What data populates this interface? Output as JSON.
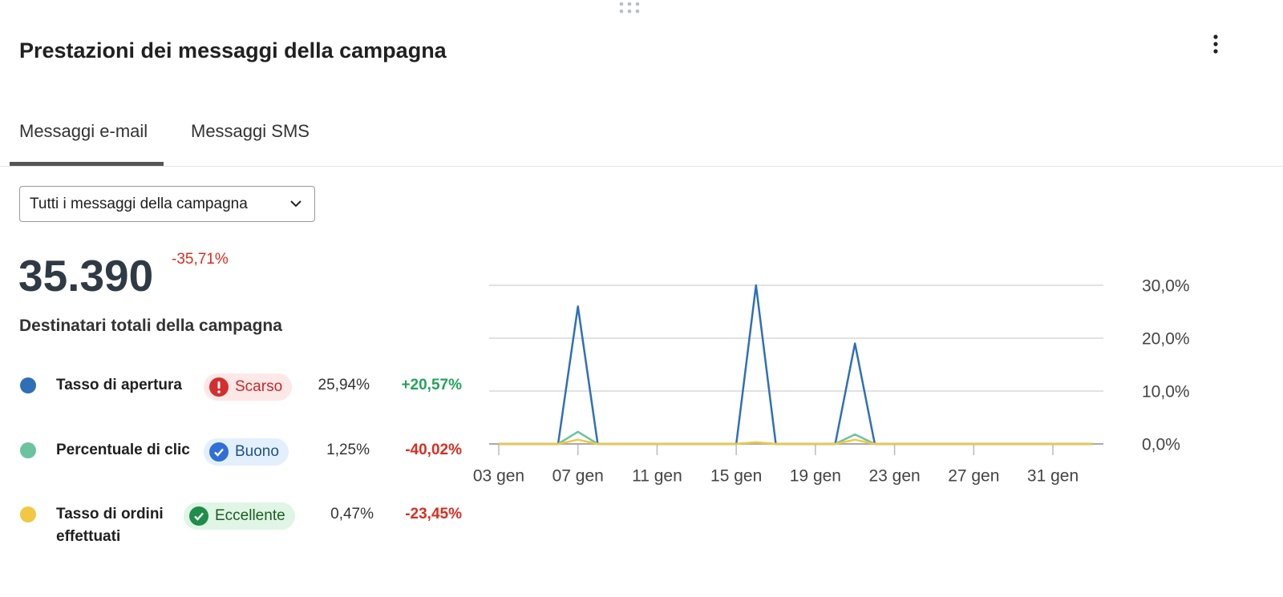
{
  "header": {
    "title": "Prestazioni dei messaggi della campagna"
  },
  "tabs": [
    "Messaggi e-mail",
    "Messaggi SMS"
  ],
  "dropdown": "Tutti i messaggi della campagna",
  "summary": {
    "value": "35.390",
    "change": "-35,71%",
    "label": "Destinatari totali della campagna"
  },
  "metrics": [
    {
      "badge": "Scarso",
      "value": "25,94%",
      "change": "+20,57%"
    },
    {
      "badge": "Buono",
      "value": "1,25%",
      "change": "-40,02%"
    },
    {
      "badge": "Eccellente",
      "value": "0,47%",
      "change": "-23,45%"
    }
  ],
  "chart_data": {
    "type": "line",
    "categories": [
      "03 gen",
      null,
      null,
      null,
      "07 gen",
      null,
      null,
      null,
      "11 gen",
      null,
      null,
      null,
      "15 gen",
      null,
      null,
      null,
      "19 gen",
      null,
      null,
      null,
      "23 gen",
      null,
      null,
      null,
      "27 gen",
      null,
      null,
      null,
      "31 gen",
      null,
      null
    ],
    "series": [
      {
        "name": "Tasso di apertura",
        "color": "#2f6fb7",
        "values": [
          0,
          0,
          0,
          0,
          26,
          0,
          0,
          0,
          0,
          0,
          0,
          0,
          0,
          30,
          0,
          0,
          0,
          0,
          19,
          0,
          0,
          0,
          0,
          0,
          0,
          0,
          0,
          0,
          0,
          0,
          0
        ]
      },
      {
        "name": "Percentuale di clic",
        "color": "#6cc3a0",
        "values": [
          0,
          0,
          0,
          0,
          2.3,
          0,
          0,
          0,
          0,
          0,
          0,
          0,
          0,
          0.3,
          0,
          0,
          0,
          0,
          1.8,
          0,
          0,
          0,
          0,
          0,
          0,
          0,
          0,
          0,
          0,
          0,
          0
        ]
      },
      {
        "name": "Tasso di ordini effettuati",
        "color": "#f2c744",
        "values": [
          0,
          0,
          0,
          0,
          0.8,
          0,
          0,
          0,
          0,
          0,
          0,
          0,
          0,
          0.3,
          0,
          0,
          0,
          0,
          0.8,
          0,
          0,
          0,
          0,
          0,
          0,
          0,
          0,
          0,
          0,
          0,
          0
        ]
      }
    ],
    "ylim": [
      0,
      30
    ],
    "yticks": [
      {
        "value": 0,
        "label": "0,0%"
      },
      {
        "value": 10,
        "label": "10,0%"
      },
      {
        "value": 20,
        "label": "20,0%"
      },
      {
        "value": 30,
        "label": "30,0%"
      }
    ],
    "grid": true
  }
}
